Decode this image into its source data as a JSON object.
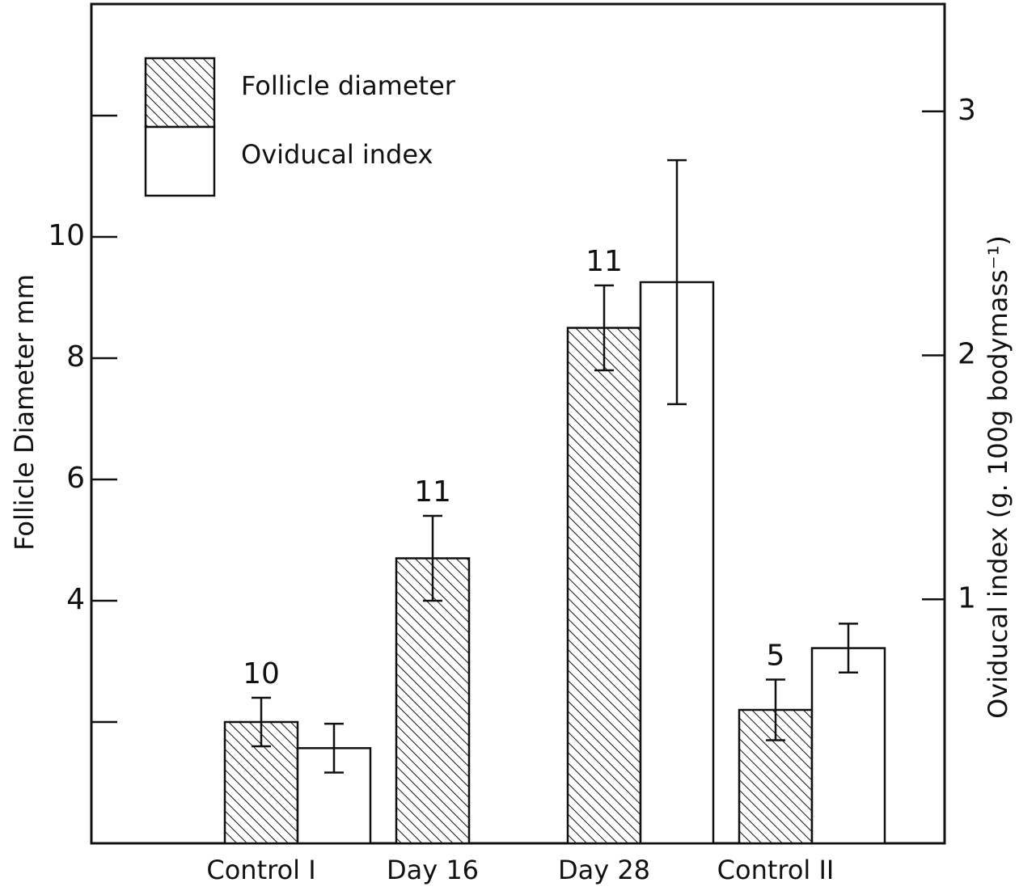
{
  "chart_data": {
    "type": "bar",
    "categories": [
      "Control I",
      "Day 16",
      "Day 28",
      "Control II"
    ],
    "series": [
      {
        "name": "Follicle diameter",
        "color": "#000000",
        "pattern": "hatch",
        "axis": "y",
        "values": [
          2.0,
          4.7,
          8.5,
          2.2
        ],
        "errors": [
          0.4,
          0.7,
          0.7,
          0.5
        ]
      },
      {
        "name": "Oviducal index",
        "color": "#ffffff",
        "pattern": "none",
        "axis": "y2",
        "values": [
          0.39,
          null,
          2.3,
          0.8
        ],
        "errors": [
          0.1,
          null,
          0.5,
          0.1
        ]
      }
    ],
    "annotations": [
      "10",
      "11",
      "11",
      "5"
    ],
    "ylabel": "Follicle Diameter mm",
    "y2label": "Oviducal index (g. 100g bodymass⁻¹)",
    "ylim": [
      0,
      13.84
    ],
    "yticks": [
      4,
      6,
      8,
      10
    ],
    "minor_yticks": [
      2,
      12
    ],
    "y2lim": [
      0,
      3.44
    ],
    "y2ticks": [
      1,
      2,
      3
    ],
    "legend": "upper left"
  }
}
